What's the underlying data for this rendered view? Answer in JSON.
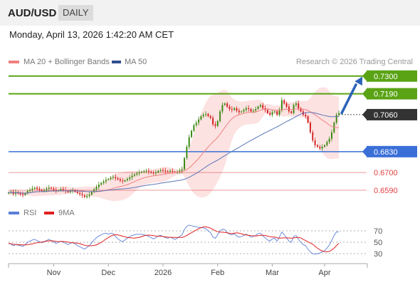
{
  "header": {
    "symbol": "AUD/USD",
    "period": "DAILY"
  },
  "datetime": "Monday, April 13, 2026 1:42:20 AM CET",
  "legend": {
    "ma20_bollinger": "MA 20 + Bollinger Bands",
    "ma50": "MA 50",
    "source": "Research © 2026 Trading Central",
    "rsi": "RSI",
    "rsi_ma": "9MA"
  },
  "colors": {
    "resistance": "#5aa315",
    "support": "#3a6fd8",
    "target": "#e04040",
    "bull": "#3c8a14",
    "bear": "#d21f1f",
    "ma20": "#f08080",
    "ma50": "#5b78b8",
    "band_fill": "#fde2e2",
    "rsi_line": "#5b7fd6",
    "rsi_ma_line": "#e02020",
    "arrow": "#2a63b8",
    "current": "#333333"
  },
  "chart_data": [
    {
      "type": "candlestick",
      "instrument": "AUD/USD",
      "timeframe": "DAILY",
      "x_labels": [
        "Nov",
        "Dec",
        "2026",
        "Feb",
        "Mar",
        "Apr"
      ],
      "ylim": [
        0.655,
        0.733
      ],
      "price_levels": [
        {
          "value": 0.73,
          "label": "0.7300",
          "kind": "resistance"
        },
        {
          "value": 0.719,
          "label": "0.7190",
          "kind": "resistance"
        },
        {
          "value": 0.706,
          "label": "0.7060",
          "kind": "current"
        },
        {
          "value": 0.683,
          "label": "0.6830",
          "kind": "support"
        },
        {
          "value": 0.67,
          "label": "0.6700",
          "kind": "target"
        },
        {
          "value": 0.659,
          "label": "0.6590",
          "kind": "target"
        }
      ],
      "close": [
        0.6575,
        0.658,
        0.6568,
        0.6578,
        0.657,
        0.6565,
        0.656,
        0.6572,
        0.6585,
        0.6592,
        0.66,
        0.6605,
        0.6598,
        0.6592,
        0.6585,
        0.659,
        0.6598,
        0.6605,
        0.66,
        0.6592,
        0.6585,
        0.659,
        0.6598,
        0.6592,
        0.6585,
        0.6578,
        0.6585,
        0.659,
        0.658,
        0.6572,
        0.6565,
        0.6558,
        0.6548,
        0.6555,
        0.6562,
        0.658,
        0.6595,
        0.661,
        0.6625,
        0.6635,
        0.6645,
        0.6655,
        0.666,
        0.6668,
        0.6672,
        0.6665,
        0.6658,
        0.665,
        0.6645,
        0.6652,
        0.666,
        0.667,
        0.668,
        0.6688,
        0.6695,
        0.67,
        0.6705,
        0.6708,
        0.671,
        0.6705,
        0.67,
        0.6695,
        0.67,
        0.671,
        0.6715,
        0.6712,
        0.6708,
        0.6705,
        0.671,
        0.6705,
        0.67,
        0.6705,
        0.6712,
        0.672,
        0.679,
        0.686,
        0.692,
        0.696,
        0.6995,
        0.701,
        0.703,
        0.705,
        0.706,
        0.7065,
        0.705,
        0.704,
        0.7,
        0.699,
        0.702,
        0.708,
        0.712,
        0.713,
        0.711,
        0.7095,
        0.709,
        0.71,
        0.7085,
        0.7075,
        0.708,
        0.709,
        0.71,
        0.7095,
        0.708,
        0.7085,
        0.7095,
        0.711,
        0.712,
        0.71,
        0.709,
        0.707,
        0.706,
        0.7075,
        0.708,
        0.706,
        0.709,
        0.715,
        0.713,
        0.711,
        0.708,
        0.707,
        0.712,
        0.713,
        0.71,
        0.708,
        0.706,
        0.705,
        0.701,
        0.695,
        0.69,
        0.687,
        0.686,
        0.685,
        0.686,
        0.687,
        0.689,
        0.691,
        0.695,
        0.701,
        0.706,
        0.707
      ],
      "rsi": {
        "name": "RSI",
        "ma_name": "9MA",
        "ylim": [
          20,
          80
        ],
        "ticks": [
          70,
          50,
          30
        ],
        "values": [
          48,
          47,
          44,
          46,
          45,
          44,
          43,
          46,
          50,
          52,
          54,
          55,
          53,
          51,
          49,
          51,
          53,
          55,
          53,
          50,
          48,
          50,
          52,
          50,
          48,
          46,
          48,
          50,
          47,
          44,
          42,
          40,
          38,
          41,
          44,
          49,
          54,
          58,
          61,
          63,
          65,
          66,
          64,
          66,
          65,
          60,
          56,
          53,
          51,
          54,
          57,
          60,
          62,
          63,
          64,
          64,
          64,
          63,
          62,
          60,
          58,
          56,
          58,
          61,
          62,
          60,
          58,
          57,
          59,
          57,
          55,
          57,
          60,
          63,
          72,
          78,
          80,
          79,
          78,
          77,
          76,
          76,
          75,
          74,
          70,
          67,
          59,
          57,
          63,
          70,
          73,
          72,
          67,
          64,
          63,
          65,
          61,
          59,
          60,
          62,
          64,
          62,
          59,
          60,
          62,
          65,
          66,
          61,
          58,
          54,
          52,
          56,
          57,
          52,
          59,
          68,
          63,
          58,
          52,
          50,
          60,
          62,
          55,
          50,
          46,
          44,
          38,
          33,
          30,
          29,
          30,
          31,
          33,
          35,
          40,
          45,
          53,
          62,
          68,
          68
        ]
      }
    }
  ]
}
